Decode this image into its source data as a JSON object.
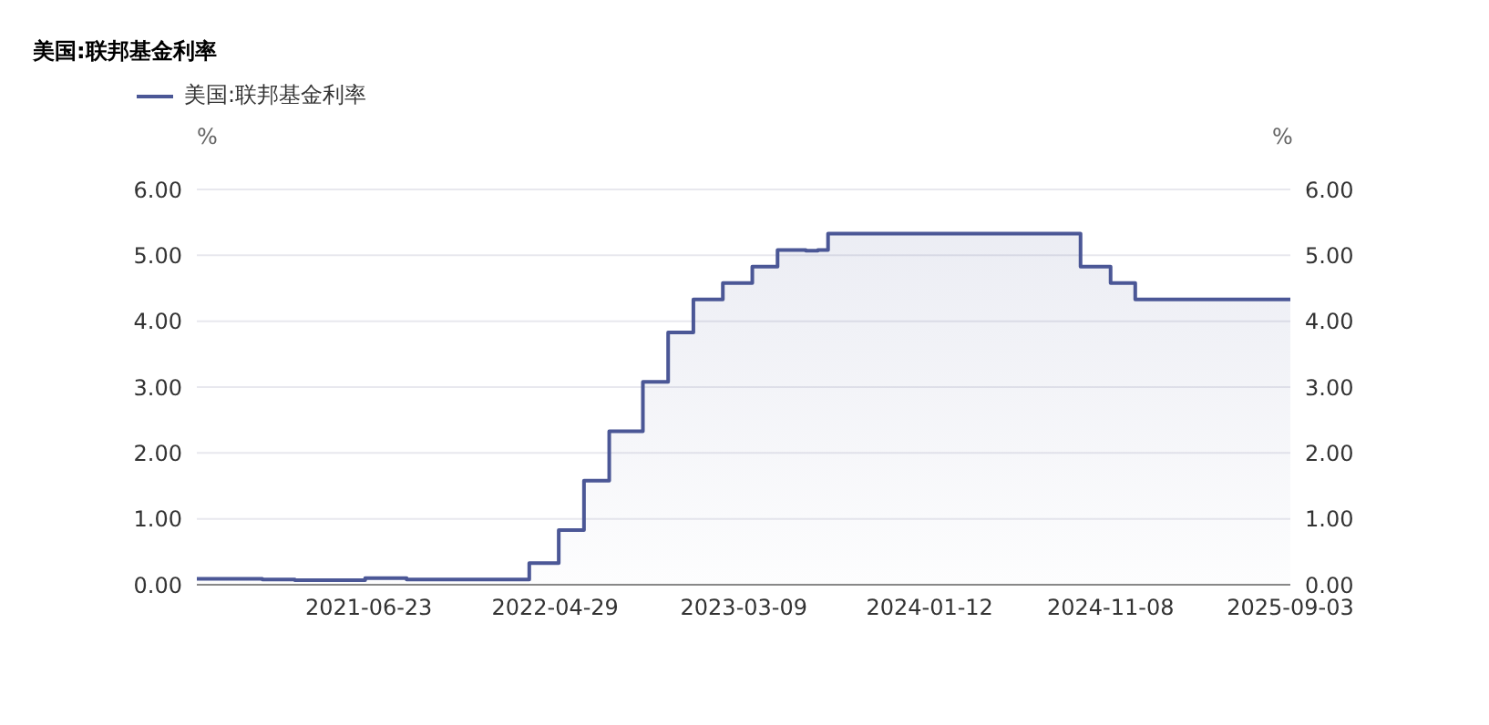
{
  "chart_data": {
    "type": "area",
    "title": "美国:联邦基金利率",
    "ylabel": "%",
    "y2label": "%",
    "xlim": [
      "2020-09-10",
      "2025-09-03"
    ],
    "xticks": [
      "2021-06-23",
      "2022-04-29",
      "2023-03-09",
      "2024-01-12",
      "2024-11-08",
      "2025-09-03"
    ],
    "ylim": [
      0,
      6
    ],
    "yticks": [
      {
        "value": 0,
        "label": "0.00"
      },
      {
        "value": 1,
        "label": "1.00"
      },
      {
        "value": 2,
        "label": "2.00"
      },
      {
        "value": 3,
        "label": "3.00"
      },
      {
        "value": 4,
        "label": "4.00"
      },
      {
        "value": 5,
        "label": "5.00"
      },
      {
        "value": 6,
        "label": "6.00"
      }
    ],
    "y2lim": [
      0,
      6
    ],
    "y2ticks": [
      {
        "value": 0,
        "label": "0.00"
      },
      {
        "value": 1,
        "label": "1.00"
      },
      {
        "value": 2,
        "label": "2.00"
      },
      {
        "value": 3,
        "label": "3.00"
      },
      {
        "value": 4,
        "label": "4.00"
      },
      {
        "value": 5,
        "label": "5.00"
      },
      {
        "value": 6,
        "label": "6.00"
      }
    ],
    "grid": "y",
    "legend": "top left",
    "marker": "none",
    "line_style": "solid",
    "series": [
      {
        "name": "美国:联邦基金利率",
        "color": "#4b5796",
        "x": [
          "2020-09-10",
          "2020-12-28",
          "2020-12-28",
          "2021-02-20",
          "2021-02-20",
          "2021-06-17",
          "2021-06-17",
          "2021-08-25",
          "2021-08-25",
          "2022-03-17",
          "2022-03-17",
          "2022-05-05",
          "2022-05-05",
          "2022-06-16",
          "2022-06-16",
          "2022-07-28",
          "2022-07-28",
          "2022-09-22",
          "2022-09-22",
          "2022-11-03",
          "2022-11-03",
          "2022-12-15",
          "2022-12-15",
          "2023-02-02",
          "2023-02-02",
          "2023-03-23",
          "2023-03-23",
          "2023-05-04",
          "2023-05-04",
          "2023-06-20",
          "2023-06-20",
          "2023-07-10",
          "2023-07-10",
          "2023-07-27",
          "2023-07-27",
          "2024-09-19",
          "2024-09-19",
          "2024-11-08",
          "2024-11-08",
          "2024-12-19",
          "2024-12-19",
          "2025-09-03"
        ],
        "values": [
          0.09,
          0.09,
          0.08,
          0.08,
          0.07,
          0.07,
          0.1,
          0.1,
          0.08,
          0.08,
          0.33,
          0.33,
          0.83,
          0.83,
          1.58,
          1.58,
          2.33,
          2.33,
          3.08,
          3.08,
          3.83,
          3.83,
          4.33,
          4.33,
          4.58,
          4.58,
          4.83,
          4.83,
          5.08,
          5.08,
          5.07,
          5.07,
          5.08,
          5.08,
          5.33,
          5.33,
          4.83,
          4.83,
          4.58,
          4.58,
          4.33,
          4.33
        ]
      }
    ]
  }
}
